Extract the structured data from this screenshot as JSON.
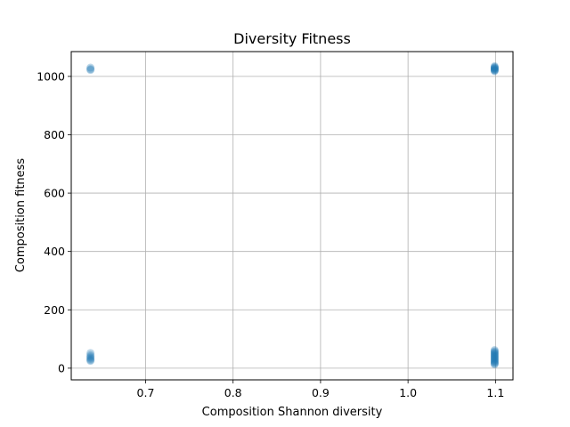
{
  "chart_data": {
    "type": "scatter",
    "title": "Diversity Fitness",
    "xlabel": "Composition Shannon diversity",
    "ylabel": "Composition fitness",
    "xlim": [
      0.615,
      1.12
    ],
    "ylim": [
      -40,
      1085
    ],
    "xticks": [
      0.7,
      0.8,
      0.9,
      1.0,
      1.1
    ],
    "xtick_labels": [
      "0.7",
      "0.8",
      "0.9",
      "1.0",
      "1.1"
    ],
    "yticks": [
      0,
      200,
      400,
      600,
      800,
      1000
    ],
    "ytick_labels": [
      "0",
      "200",
      "400",
      "600",
      "800",
      "1000"
    ],
    "grid": true,
    "marker_color": "#1f77b4",
    "series": [
      {
        "points": [
          [
            0.637,
            1030
          ],
          [
            0.637,
            1025
          ],
          [
            0.637,
            1022
          ],
          [
            0.637,
            52
          ],
          [
            0.637,
            45
          ],
          [
            0.637,
            40
          ],
          [
            0.637,
            36
          ],
          [
            0.637,
            32
          ],
          [
            0.637,
            28
          ],
          [
            0.637,
            25
          ],
          [
            1.099,
            1035
          ],
          [
            1.099,
            1032
          ],
          [
            1.099,
            1030
          ],
          [
            1.099,
            1028
          ],
          [
            1.099,
            1026
          ],
          [
            1.099,
            1024
          ],
          [
            1.099,
            1022
          ],
          [
            1.099,
            1020
          ],
          [
            1.099,
            1018
          ],
          [
            1.099,
            62
          ],
          [
            1.099,
            58
          ],
          [
            1.099,
            55
          ],
          [
            1.099,
            52
          ],
          [
            1.099,
            49
          ],
          [
            1.099,
            46
          ],
          [
            1.099,
            43
          ],
          [
            1.099,
            40
          ],
          [
            1.099,
            37
          ],
          [
            1.099,
            34
          ],
          [
            1.099,
            31
          ],
          [
            1.099,
            28
          ],
          [
            1.099,
            25
          ],
          [
            1.099,
            22
          ],
          [
            1.099,
            19
          ],
          [
            1.099,
            16
          ],
          [
            1.099,
            13
          ]
        ]
      }
    ]
  }
}
